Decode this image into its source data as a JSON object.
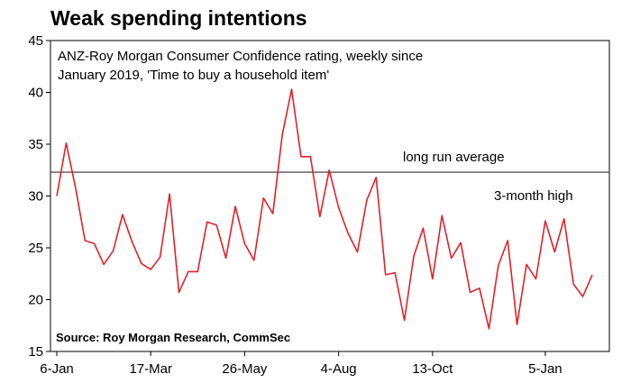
{
  "chart_data": {
    "type": "line",
    "title": "Weak spending intentions",
    "subtitle_lines": [
      "ANZ-Roy Morgan Consumer Confidence rating, weekly since",
      "January 2019, 'Time to buy a household item'"
    ],
    "source": "Source: Roy Morgan Research, CommSec",
    "ylim": [
      15,
      45
    ],
    "yticks": [
      15,
      20,
      25,
      30,
      35,
      40,
      45
    ],
    "ytick_labels": [
      "15",
      "20",
      "25",
      "30",
      "35",
      "40",
      "45"
    ],
    "xtick_labels": [
      "6-Jan",
      "17-Mar",
      "26-May",
      "4-Aug",
      "13-Oct",
      "5-Jan"
    ],
    "xtick_index": [
      0,
      10,
      20,
      30,
      40,
      52
    ],
    "series": [
      {
        "color": "#e3202a",
        "values": [
          30.0,
          35.1,
          30.8,
          25.7,
          25.4,
          23.4,
          24.7,
          28.2,
          25.6,
          23.5,
          22.9,
          24.1,
          30.2,
          20.7,
          22.7,
          22.7,
          27.5,
          27.2,
          24.0,
          29.0,
          25.4,
          23.8,
          29.8,
          28.3,
          35.9,
          40.3,
          33.8,
          33.8,
          28.0,
          32.5,
          28.9,
          26.4,
          24.6,
          29.6,
          31.8,
          22.4,
          22.6,
          18.0,
          24.2,
          26.9,
          22.0,
          28.1,
          24.0,
          25.5,
          20.7,
          21.1,
          17.2,
          23.3,
          25.7,
          17.6,
          23.4,
          22.0,
          27.6,
          24.6,
          27.8,
          21.5,
          20.3,
          22.4
        ]
      }
    ],
    "reference_line": {
      "value": 32.3,
      "label": "long run average"
    },
    "annotations": [
      {
        "text": "3-month high",
        "index": 54
      }
    ],
    "grid": false,
    "legend": "none"
  }
}
